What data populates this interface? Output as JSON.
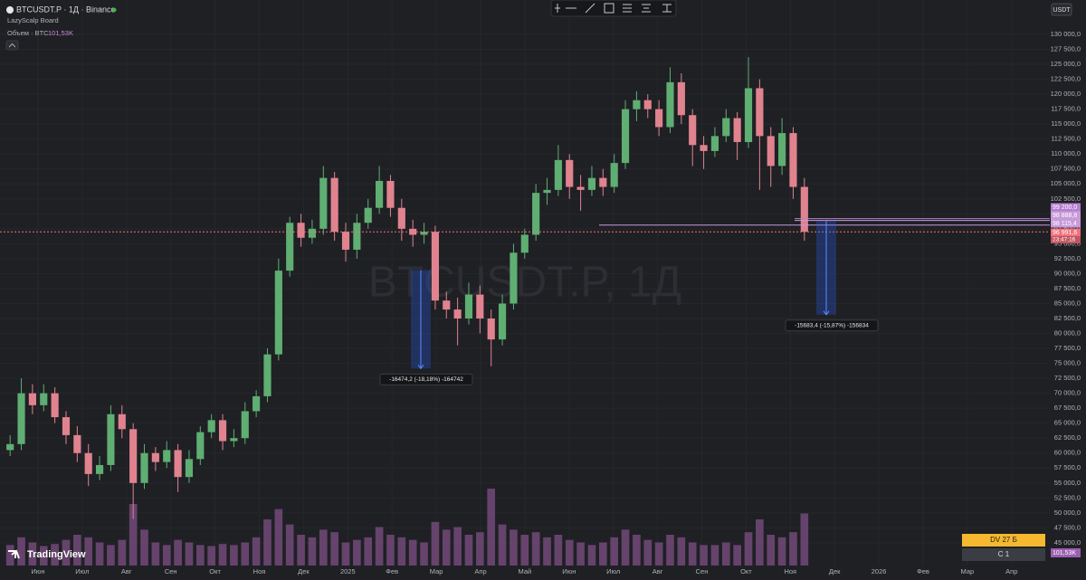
{
  "chart_data": {
    "type": "candlestick",
    "title": "BTCUSDT.P · 1Д · Binance",
    "indicator": "LazyScalp Board",
    "volume_legend": "Объем · BTC",
    "volume_value_label": "101,53K",
    "currency": "USDT",
    "watermark": "BTCUSDT.P, 1Д",
    "brand": "TradingView",
    "up_color": "#5fae72",
    "down_color": "#e0838f",
    "volume_color": "#7d4f84",
    "categories": [
      "Июн",
      "Июл",
      "Авг",
      "Сен",
      "Окт",
      "Ноя",
      "Дек",
      "2025",
      "Фев",
      "Мар",
      "Апр",
      "Май",
      "Июн",
      "Июл",
      "Авг",
      "Сен",
      "Окт",
      "Ноя",
      "Дек",
      "2026",
      "Фев",
      "Мар",
      "Апр"
    ],
    "open": [
      60500,
      61500,
      70000,
      68000,
      70000,
      66000,
      63000,
      60000,
      56500,
      58000,
      66500,
      64000,
      55000,
      60000,
      58500,
      60500,
      56000,
      59000,
      63500,
      65500,
      62000,
      62500,
      67000,
      69500,
      76500,
      90500,
      98500,
      96000,
      97500,
      106000,
      97000,
      94000,
      98500,
      101000,
      105500,
      101000,
      97500,
      96500,
      97000,
      85500,
      84000,
      82500,
      86500,
      82500,
      79000,
      85000,
      93500,
      96500,
      103500,
      104000,
      109000,
      104500,
      104000,
      106000,
      104500,
      108500,
      117500,
      119000,
      117500,
      114500,
      122000,
      116500,
      111500,
      110500,
      113000,
      116000,
      112000,
      121000,
      113000,
      108000,
      113500,
      104500
    ],
    "high": [
      63000,
      72500,
      71500,
      71500,
      71000,
      67000,
      64500,
      61500,
      59500,
      68000,
      68000,
      65000,
      61500,
      61000,
      62000,
      61500,
      60500,
      64500,
      66500,
      66500,
      64000,
      68500,
      70500,
      77500,
      92500,
      99500,
      100000,
      99000,
      108000,
      107000,
      98500,
      100000,
      102500,
      108000,
      106500,
      102500,
      99000,
      98500,
      98000,
      87000,
      86000,
      88500,
      88000,
      84000,
      86500,
      95000,
      97500,
      105000,
      106000,
      111500,
      110000,
      106500,
      108000,
      107500,
      110000,
      119000,
      120500,
      120000,
      119000,
      124500,
      123500,
      117500,
      113000,
      114500,
      117500,
      117000,
      126200,
      122500,
      114500,
      116000,
      114500,
      106000
    ],
    "low": [
      59500,
      60500,
      66500,
      67000,
      65000,
      61500,
      58500,
      54500,
      55500,
      57000,
      62500,
      49000,
      54000,
      57000,
      57500,
      53500,
      55000,
      58000,
      62500,
      60500,
      61000,
      61500,
      66000,
      68500,
      75500,
      89500,
      94500,
      95000,
      96500,
      95500,
      92000,
      92500,
      97500,
      100000,
      99500,
      95500,
      94500,
      95000,
      84000,
      82500,
      78000,
      81500,
      80000,
      74500,
      78000,
      84000,
      92500,
      95500,
      101500,
      103000,
      102500,
      100500,
      103000,
      103000,
      103500,
      107500,
      115500,
      116000,
      113000,
      113500,
      115000,
      108000,
      107500,
      109500,
      112000,
      109000,
      111000,
      104000,
      104500,
      106500,
      102500,
      95500
    ],
    "close": [
      61500,
      70000,
      68000,
      70000,
      66000,
      63000,
      60000,
      56500,
      58000,
      66500,
      64000,
      55000,
      60000,
      58500,
      60500,
      56000,
      59000,
      63500,
      65500,
      62000,
      62500,
      67000,
      69500,
      76500,
      90500,
      98500,
      96000,
      97500,
      106000,
      97000,
      94000,
      98500,
      101000,
      105500,
      101000,
      97500,
      96500,
      97000,
      85500,
      84000,
      82500,
      86500,
      82500,
      79000,
      85000,
      93500,
      96500,
      103500,
      104000,
      109000,
      104500,
      104000,
      106000,
      104500,
      108500,
      117500,
      119000,
      117500,
      114500,
      122000,
      116500,
      111500,
      110500,
      113000,
      116000,
      112000,
      121000,
      113000,
      108000,
      113500,
      104500,
      97000
    ],
    "volume": [
      40,
      55,
      45,
      38,
      42,
      50,
      60,
      55,
      45,
      40,
      50,
      120,
      70,
      45,
      40,
      50,
      45,
      40,
      38,
      42,
      40,
      45,
      55,
      90,
      110,
      80,
      60,
      55,
      70,
      65,
      45,
      50,
      55,
      75,
      60,
      55,
      50,
      45,
      85,
      70,
      75,
      60,
      65,
      150,
      80,
      70,
      60,
      65,
      55,
      60,
      50,
      45,
      40,
      45,
      55,
      70,
      60,
      50,
      45,
      60,
      55,
      45,
      40,
      40,
      45,
      40,
      65,
      90,
      60,
      55,
      65,
      101.53
    ],
    "ylim": [
      41200,
      135750
    ],
    "yticks": [
      {
        "value": 130000,
        "label": "130 000,0"
      },
      {
        "value": 127500,
        "label": "127 500,0"
      },
      {
        "value": 125000,
        "label": "125 000,0"
      },
      {
        "value": 122500,
        "label": "122 500,0"
      },
      {
        "value": 120000,
        "label": "120 000,0"
      },
      {
        "value": 117500,
        "label": "117 500,0"
      },
      {
        "value": 115000,
        "label": "115 000,0"
      },
      {
        "value": 112500,
        "label": "112 500,0"
      },
      {
        "value": 110000,
        "label": "110 000,0"
      },
      {
        "value": 107500,
        "label": "107 500,0"
      },
      {
        "value": 105000,
        "label": "105 000,0"
      },
      {
        "value": 102500,
        "label": "102 500,0"
      },
      {
        "value": 100000,
        "label": "100 000,0"
      },
      {
        "value": 97500,
        "label": "97 500,0"
      },
      {
        "value": 95000,
        "label": "95 000,0"
      },
      {
        "value": 92500,
        "label": "92 500,0"
      },
      {
        "value": 90000,
        "label": "90 000,0"
      },
      {
        "value": 87500,
        "label": "87 500,0"
      },
      {
        "value": 85000,
        "label": "85 000,0"
      },
      {
        "value": 82500,
        "label": "82 500,0"
      },
      {
        "value": 80000,
        "label": "80 000,0"
      },
      {
        "value": 77500,
        "label": "77 500,0"
      },
      {
        "value": 75000,
        "label": "75 000,0"
      },
      {
        "value": 72500,
        "label": "72 500,0"
      },
      {
        "value": 70000,
        "label": "70 000,0"
      },
      {
        "value": 67500,
        "label": "67 500,0"
      },
      {
        "value": 65000,
        "label": "65 000,0"
      },
      {
        "value": 62500,
        "label": "62 500,0"
      },
      {
        "value": 60000,
        "label": "60 000,0"
      },
      {
        "value": 57500,
        "label": "57 500,0"
      },
      {
        "value": 55000,
        "label": "55 000,0"
      },
      {
        "value": 52500,
        "label": "52 500,0"
      },
      {
        "value": 50000,
        "label": "50 000,0"
      },
      {
        "value": 47500,
        "label": "47 500,0"
      },
      {
        "value": 45000,
        "label": "45 000,0"
      }
    ],
    "grid": true,
    "levels": [
      {
        "value": 99200,
        "label": "99 200,0",
        "color": "#b57fd0"
      },
      {
        "value": 98888.8,
        "label": "98 888,8",
        "color": "#c79ad8"
      },
      {
        "value": 98115.4,
        "label": "98 115,4",
        "color": "#c79ad8"
      },
      {
        "value": 96991.6,
        "label": "96 991,6",
        "color": "#f0707c"
      }
    ],
    "timer": "23:47:16",
    "measures": [
      {
        "from": 90600,
        "to": 74125.8,
        "label": "-16474,2 (-18,18%) -164742"
      },
      {
        "from": 98823.4,
        "to": 83140,
        "label": "-15683,4 (-15,87%) -156834"
      }
    ],
    "boards": [
      {
        "label": "DV 27 Б",
        "color": "#f5b82e"
      },
      {
        "label": "C 1",
        "color": "#3a3d44"
      }
    ]
  }
}
